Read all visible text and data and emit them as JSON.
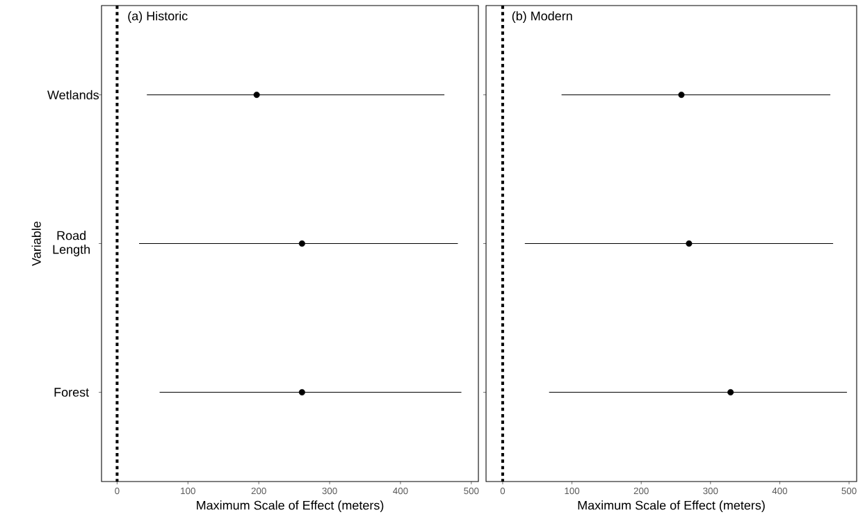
{
  "chart_data": [
    {
      "type": "scatter",
      "title": "(a) Historic",
      "orientation": "horizontal",
      "categories": [
        "Wetlands",
        "Road Length",
        "Forest"
      ],
      "values": [
        197,
        261,
        261
      ],
      "errors": [
        [
          42,
          462
        ],
        [
          31,
          481
        ],
        [
          60,
          486
        ]
      ],
      "color": "#000000",
      "marker": "circle",
      "xlim": [
        -22,
        510
      ],
      "xticks": [
        0,
        100,
        200,
        300,
        400,
        500
      ],
      "xlabel": "Maximum Scale of Effect (meters)",
      "ylabel": "Variable",
      "ref_lines": [
        {
          "axis": "x",
          "value": 0,
          "line_style": "dotted",
          "color": "#000000"
        }
      ],
      "grid": false
    },
    {
      "type": "scatter",
      "title": "(b) Modern",
      "orientation": "horizontal",
      "categories": [
        null,
        null,
        null
      ],
      "values": [
        258,
        269,
        329
      ],
      "errors": [
        [
          85,
          473
        ],
        [
          32,
          477
        ],
        [
          67,
          497
        ]
      ],
      "color": "#000000",
      "marker": "circle",
      "xlim": [
        -24,
        511
      ],
      "xticks": [
        0,
        100,
        200,
        300,
        400,
        500
      ],
      "xlabel": "Maximum Scale of Effect (meters)",
      "ref_lines": [
        {
          "axis": "x",
          "value": 0,
          "line_style": "dotted",
          "color": "#000000"
        }
      ],
      "grid": false,
      "tick_labels": "x"
    }
  ]
}
